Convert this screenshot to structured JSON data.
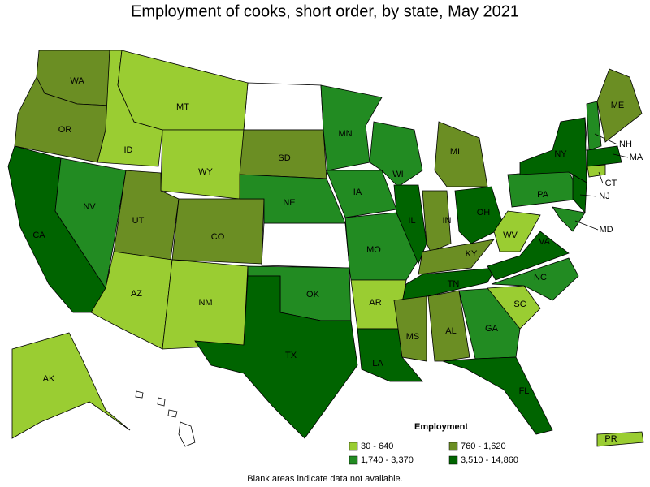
{
  "title": "Employment of cooks, short order, by state, May 2021",
  "legend": {
    "title": "Employment",
    "items": [
      {
        "label": "30 - 640",
        "color": "#9acd32"
      },
      {
        "label": "760 - 1,620",
        "color": "#6b8e23"
      },
      {
        "label": "1,740 - 3,370",
        "color": "#228b22"
      },
      {
        "label": "3,510 - 14,860",
        "color": "#006400"
      }
    ]
  },
  "states": [
    {
      "label": "WA",
      "color": "#6b8e23"
    },
    {
      "label": "OR",
      "color": "#6b8e23"
    },
    {
      "label": "CA",
      "color": "#006400"
    },
    {
      "label": "NV",
      "color": "#228b22"
    },
    {
      "label": "ID",
      "color": "#9acd32"
    },
    {
      "label": "MT",
      "color": "#9acd32"
    },
    {
      "label": "WY",
      "color": "#9acd32"
    },
    {
      "label": "UT",
      "color": "#6b8e23"
    },
    {
      "label": "CO",
      "color": "#6b8e23"
    },
    {
      "label": "AZ",
      "color": "#9acd32"
    },
    {
      "label": "NM",
      "color": "#9acd32"
    },
    {
      "label": "SD",
      "color": "#6b8e23"
    },
    {
      "label": "NE",
      "color": "#228b22"
    },
    {
      "label": "OK",
      "color": "#228b22"
    },
    {
      "label": "TX",
      "color": "#006400"
    },
    {
      "label": "MN",
      "color": "#228b22"
    },
    {
      "label": "IA",
      "color": "#228b22"
    },
    {
      "label": "MO",
      "color": "#228b22"
    },
    {
      "label": "AR",
      "color": "#9acd32"
    },
    {
      "label": "LA",
      "color": "#006400"
    },
    {
      "label": "WI",
      "color": "#228b22"
    },
    {
      "label": "IL",
      "color": "#006400"
    },
    {
      "label": "MI",
      "color": "#6b8e23"
    },
    {
      "label": "IN",
      "color": "#6b8e23"
    },
    {
      "label": "OH",
      "color": "#006400"
    },
    {
      "label": "KY",
      "color": "#6b8e23"
    },
    {
      "label": "TN",
      "color": "#006400"
    },
    {
      "label": "MS",
      "color": "#6b8e23"
    },
    {
      "label": "AL",
      "color": "#6b8e23"
    },
    {
      "label": "GA",
      "color": "#228b22"
    },
    {
      "label": "FL",
      "color": "#006400"
    },
    {
      "label": "SC",
      "color": "#9acd32"
    },
    {
      "label": "NC",
      "color": "#228b22"
    },
    {
      "label": "VA",
      "color": "#006400"
    },
    {
      "label": "WV",
      "color": "#9acd32"
    },
    {
      "label": "PA",
      "color": "#228b22"
    },
    {
      "label": "NY",
      "color": "#006400"
    },
    {
      "label": "NJ",
      "color": "#006400"
    },
    {
      "label": "MD",
      "color": "#228b22"
    },
    {
      "label": "NH",
      "color": "#228b22"
    },
    {
      "label": "ME",
      "color": "#6b8e23"
    },
    {
      "label": "MA",
      "color": "#006400"
    },
    {
      "label": "CT",
      "color": "#9acd32"
    },
    {
      "label": "AK",
      "color": "#9acd32"
    },
    {
      "label": "PR",
      "color": "#9acd32"
    }
  ],
  "footnote": "Blank areas indicate data not available."
}
